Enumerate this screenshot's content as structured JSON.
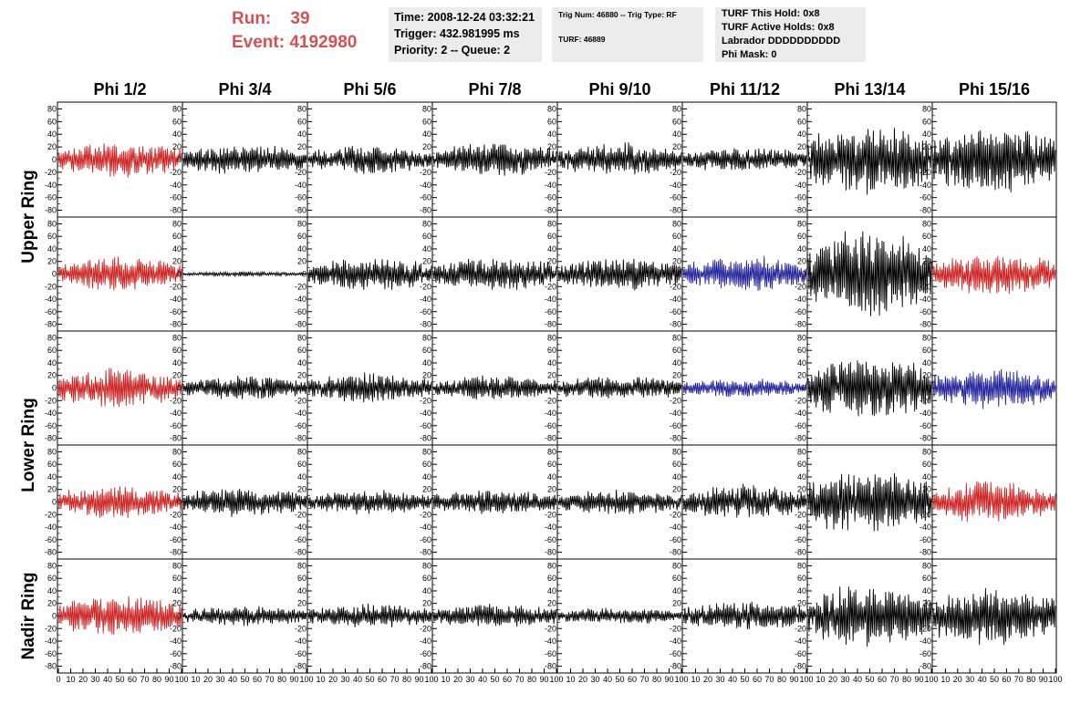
{
  "header": {
    "run_label": "Run:",
    "run_value": "39",
    "event_label": "Event:",
    "event_value": "4192980"
  },
  "info": {
    "time": "Time: 2008-12-24 03:32:21",
    "trigger": "Trigger: 432.981995 ms",
    "priority": "Priority: 2 -- Queue: 2",
    "trig_num": "Trig Num: 46880 -- Trig Type: RF",
    "turf": "TURF: 46889",
    "turf_this_hold": "TURF This Hold: 0x8",
    "turf_active_holds": "TURF Active Holds: 0x8",
    "labrador": "Labrador DDDDDDDDDD",
    "phi_mask": "Phi Mask: 0"
  },
  "chart_data": {
    "type": "line",
    "columns": [
      "Phi 1/2",
      "Phi 3/4",
      "Phi 5/6",
      "Phi 7/8",
      "Phi 9/10",
      "Phi 11/12",
      "Phi 13/14",
      "Phi 15/16"
    ],
    "ring_labels": [
      {
        "text": "Upper Ring",
        "rows": [
          0,
          1
        ]
      },
      {
        "text": "Lower Ring",
        "rows": [
          2,
          3
        ]
      },
      {
        "text": "Nadir Ring",
        "rows": [
          4,
          4
        ]
      }
    ],
    "ylim": [
      -85,
      85
    ],
    "y_ticks": [
      -80,
      -60,
      -40,
      -20,
      0,
      20,
      40,
      60,
      80
    ],
    "xlim": [
      0,
      100
    ],
    "x_ticks_first": [
      0,
      10,
      20,
      30,
      40,
      50,
      60,
      70,
      80,
      90,
      100
    ],
    "x_ticks_other": [
      10,
      20,
      30,
      40,
      50,
      60,
      70,
      80,
      90,
      100
    ],
    "colors": {
      "red": "#cc2222",
      "blue": "#22229a",
      "black": "#000000"
    },
    "panels": [
      [
        "red",
        "black",
        "black",
        "black",
        "black",
        "black",
        "black",
        "black"
      ],
      [
        "red",
        "black",
        "black",
        "black",
        "black",
        "blue",
        "black",
        "red"
      ],
      [
        "red",
        "black",
        "black",
        "black",
        "black",
        "blue",
        "black",
        "blue"
      ],
      [
        "red",
        "black",
        "black",
        "black",
        "black",
        "black",
        "black",
        "red"
      ],
      [
        "red",
        "black",
        "black",
        "black",
        "black",
        "black",
        "black",
        "black"
      ]
    ],
    "amplitudes": [
      [
        22,
        18,
        18,
        20,
        20,
        15,
        45,
        42
      ],
      [
        22,
        3,
        20,
        22,
        20,
        22,
        55,
        25
      ],
      [
        25,
        15,
        18,
        15,
        15,
        12,
        40,
        25
      ],
      [
        20,
        18,
        15,
        15,
        15,
        22,
        40,
        25
      ],
      [
        25,
        12,
        15,
        15,
        10,
        18,
        38,
        38
      ]
    ]
  }
}
